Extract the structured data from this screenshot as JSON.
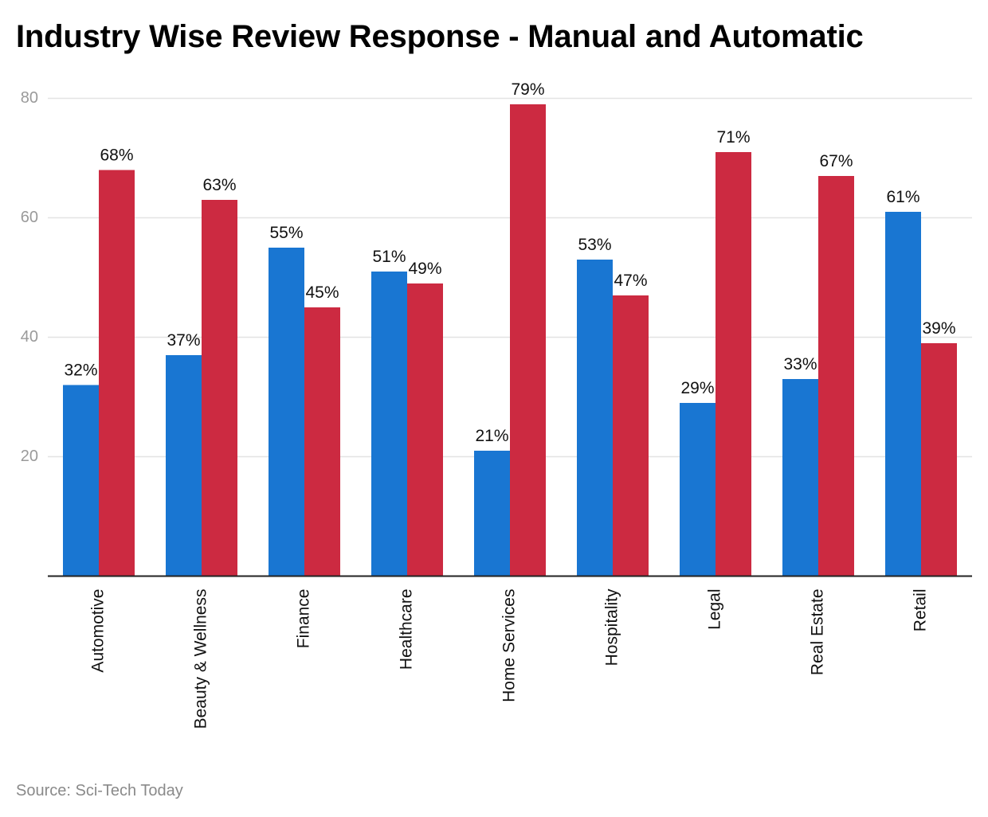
{
  "title": "Industry Wise Review Response - Manual and Automatic",
  "source": "Source: Sci-Tech Today",
  "chart_data": {
    "type": "bar",
    "categories": [
      "Automotive",
      "Beauty & Wellness",
      "Finance",
      "Healthcare",
      "Home Services",
      "Hospitality",
      "Legal",
      "Real Estate",
      "Retail"
    ],
    "series": [
      {
        "values": [
          32,
          37,
          55,
          51,
          21,
          53,
          29,
          33,
          61
        ],
        "labels": [
          "32%",
          "37%",
          "55%",
          "51%",
          "21%",
          "53%",
          "29%",
          "33%",
          "61%"
        ],
        "color": "#1976d2"
      },
      {
        "values": [
          68,
          63,
          45,
          49,
          79,
          47,
          71,
          67,
          39
        ],
        "labels": [
          "68%",
          "63%",
          "45%",
          "49%",
          "79%",
          "47%",
          "71%",
          "67%",
          "39%"
        ],
        "color": "#cc2a41"
      }
    ],
    "yticks": [
      20,
      40,
      60,
      80
    ],
    "ylim": [
      0,
      80
    ],
    "grid": true,
    "legend": "none"
  }
}
